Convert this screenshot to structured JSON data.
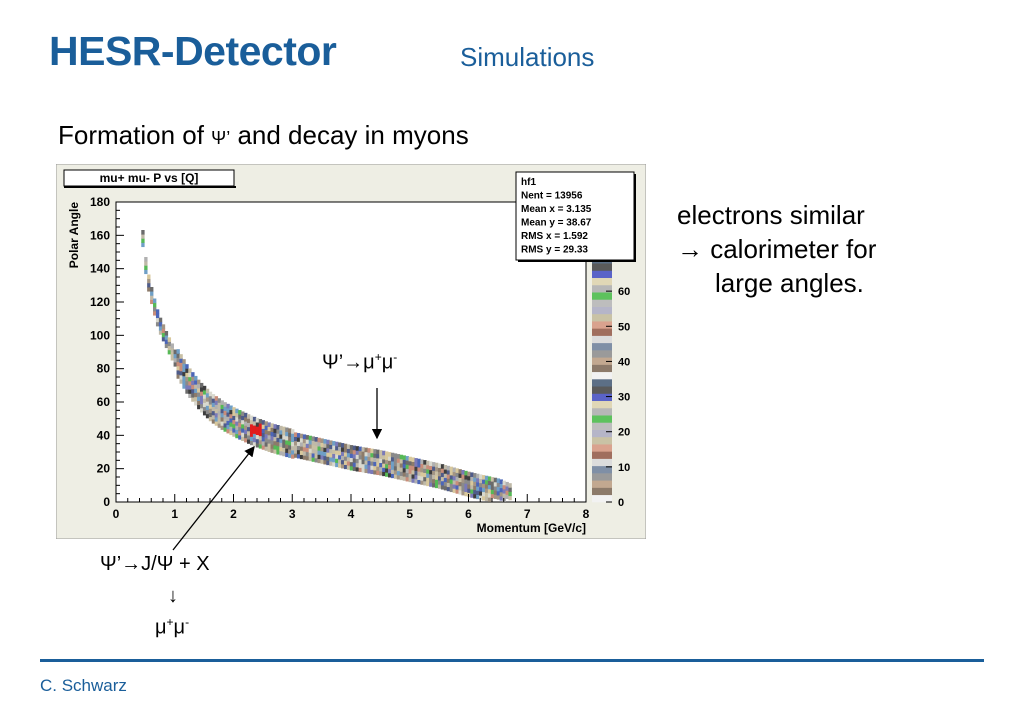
{
  "header": {
    "title": "HESR-Detector",
    "subtitle": "Simulations"
  },
  "slide": {
    "heading_pre": "Formation of ",
    "heading_psi": "Ψ’",
    "heading_post": " and decay in myons",
    "side_line1": "electrons similar",
    "side_line2": "→ calorimeter for",
    "side_line3": "large angles.",
    "annot_mid_base": "Ψ’→μ",
    "annot_mid_sup1": "+",
    "annot_mid_mid": "μ",
    "annot_mid_sup2": "-",
    "annot_low_line1": "Ψ’→J/Ψ + X",
    "annot_low_arrow": "↓",
    "annot_low_base": "μ",
    "annot_low_sup1": "+",
    "annot_low_mid": "μ",
    "annot_low_sup2": "-",
    "footer": "C. Schwarz"
  },
  "chart_data": {
    "type": "heatmap",
    "title": "mu+ mu- P vs [Q]",
    "xlabel": "Momentum [GeV/c]",
    "ylabel": "Polar Angle",
    "xlim": [
      0,
      8
    ],
    "ylim": [
      0,
      180
    ],
    "xticks": [
      "0",
      "1",
      "2",
      "3",
      "4",
      "5",
      "6",
      "7",
      "8"
    ],
    "yticks": [
      "0",
      "20",
      "40",
      "60",
      "80",
      "100",
      "120",
      "140",
      "160",
      "180"
    ],
    "zticks": [
      "0",
      "10",
      "20",
      "30",
      "40",
      "50",
      "60"
    ],
    "zlim": [
      0,
      70
    ],
    "stats": [
      {
        "label": "hf1",
        "value": ""
      },
      {
        "label": "Nent = ",
        "value": "13956"
      },
      {
        "label": "Mean x = ",
        "value": "3.135"
      },
      {
        "label": "Mean y = ",
        "value": "38.67"
      },
      {
        "label": "RMS x = ",
        "value": "1.592"
      },
      {
        "label": "RMS y = ",
        "value": "29.33"
      }
    ],
    "band_center": [
      [
        0.4,
        168
      ],
      [
        0.45,
        150
      ],
      [
        0.5,
        135
      ],
      [
        0.6,
        120
      ],
      [
        0.7,
        107
      ],
      [
        0.85,
        95
      ],
      [
        1.0,
        84
      ],
      [
        1.2,
        72
      ],
      [
        1.4,
        63
      ],
      [
        1.6,
        56
      ],
      [
        1.8,
        51
      ],
      [
        2.0,
        47
      ],
      [
        2.3,
        42
      ],
      [
        2.6,
        38
      ],
      [
        3.0,
        34
      ],
      [
        3.5,
        30
      ],
      [
        4.0,
        26
      ],
      [
        4.5,
        23
      ],
      [
        5.0,
        19
      ],
      [
        5.5,
        15
      ],
      [
        6.0,
        10
      ],
      [
        6.5,
        6
      ],
      [
        6.7,
        3
      ]
    ],
    "grid": false
  }
}
